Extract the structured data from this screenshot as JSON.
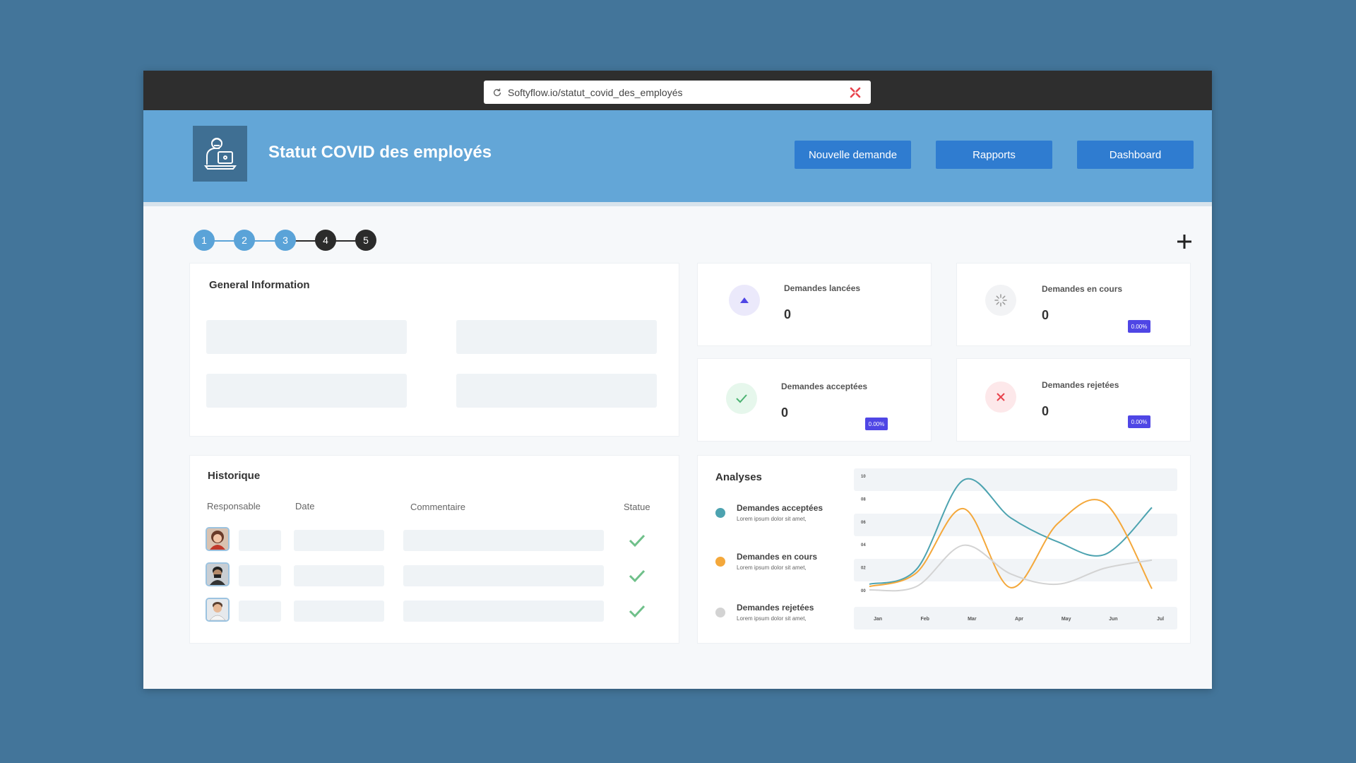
{
  "browser": {
    "url": "Softyflow.io/statut_covid_des_employés"
  },
  "header": {
    "title": "Statut COVID des employés",
    "buttons": [
      "Nouvelle demande",
      "Rapports",
      "Dashboard"
    ]
  },
  "stepper": {
    "steps": [
      "1",
      "2",
      "3",
      "4",
      "5"
    ],
    "completed_count": 3,
    "colors": {
      "done": "#5aa3d8",
      "todo": "#2b2b2b"
    }
  },
  "general_info": {
    "title": "General Information"
  },
  "stats": [
    {
      "label": "Demandes lancées",
      "value": "0",
      "icon": "triangle-up-icon",
      "badge": ""
    },
    {
      "label": "Demandes en cours",
      "value": "0",
      "icon": "spinner-icon",
      "badge": "0.00%"
    },
    {
      "label": "Demandes acceptées",
      "value": "0",
      "icon": "check-icon",
      "badge": "0.00%"
    },
    {
      "label": "Demandes rejetées",
      "value": "0",
      "icon": "x-icon",
      "badge": "0.00%"
    }
  ],
  "historique": {
    "title": "Historique",
    "columns": [
      "Responsable",
      "Date",
      "Commentaire",
      "Statue"
    ],
    "rows": [
      {
        "avatar": "avatar-woman-icon",
        "status": "check-icon"
      },
      {
        "avatar": "avatar-man-mask-icon",
        "status": "check-icon"
      },
      {
        "avatar": "avatar-man-icon",
        "status": "check-icon"
      }
    ]
  },
  "analyses": {
    "title": "Analyses",
    "legend": [
      {
        "label": "Demandes acceptées",
        "sub": "Lorem ipsum dolor sit amet,",
        "color": "#4da3b0"
      },
      {
        "label": "Demandes en cours",
        "sub": "Lorem ipsum dolor sit amet,",
        "color": "#f4a83b"
      },
      {
        "label": "Demandes rejetées",
        "sub": "Lorem ipsum dolor sit amet,",
        "color": "#d3d3d3"
      }
    ]
  },
  "chart_data": {
    "type": "line",
    "categories": [
      "Jan",
      "Feb",
      "Mar",
      "Apr",
      "May",
      "Jun",
      "Jul"
    ],
    "y_tick_labels": [
      "00",
      "02",
      "04",
      "06",
      "08",
      "10"
    ],
    "series": [
      {
        "name": "Demandes acceptées",
        "color": "#4da3b0",
        "values": [
          0.5,
          1.8,
          9.6,
          6.3,
          4.2,
          3.1,
          7.2
        ]
      },
      {
        "name": "Demandes en cours",
        "color": "#f4a83b",
        "values": [
          0.3,
          1.5,
          7.1,
          0.2,
          5.8,
          7.6,
          0.1
        ]
      },
      {
        "name": "Demandes rejetées",
        "color": "#d3d3d3",
        "values": [
          0.0,
          0.3,
          3.9,
          1.4,
          0.5,
          1.9,
          2.6
        ]
      }
    ],
    "ylim": [
      0,
      10
    ]
  }
}
